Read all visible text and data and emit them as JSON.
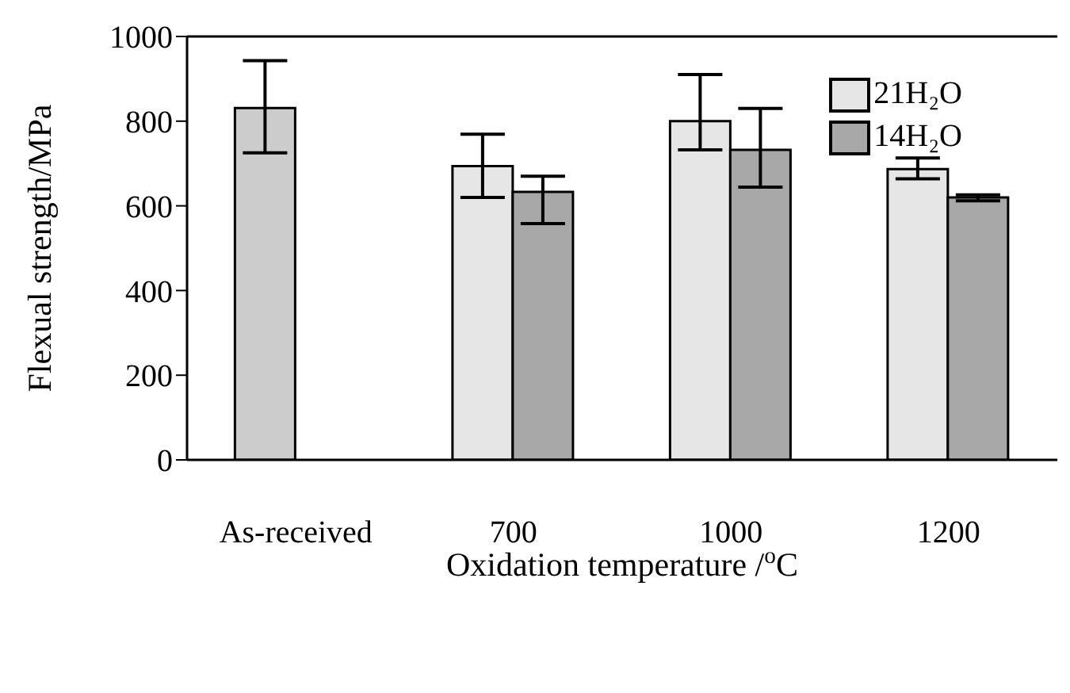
{
  "chart_data": {
    "type": "bar",
    "xlabel": "Oxidation temperature /$^{o}$C",
    "ylabel": "Flexual strength/MPa",
    "categories": [
      "As-received",
      "700",
      "1000",
      "1200"
    ],
    "series": [
      {
        "name": "21H₂O",
        "color": "#e6e6e6",
        "colors": [
          "#cccccc",
          "#e6e6e6",
          "#e6e6e6",
          "#e6e6e6"
        ],
        "values": [
          831,
          694,
          800,
          687
        ],
        "errors": [
          [
            725,
            943
          ],
          [
            620,
            769
          ],
          [
            732,
            910
          ],
          [
            664,
            713
          ]
        ]
      },
      {
        "name": "14H₂O",
        "color": "#a8a8a8",
        "values": [
          0,
          633,
          732,
          620
        ],
        "errors": [
          null,
          [
            558,
            670
          ],
          [
            644,
            830
          ],
          [
            612,
            626
          ]
        ]
      }
    ],
    "ylim": [
      0,
      1000
    ],
    "yticks": [
      0,
      200,
      400,
      600,
      800,
      1000
    ],
    "grid": false,
    "legend": "top right"
  }
}
